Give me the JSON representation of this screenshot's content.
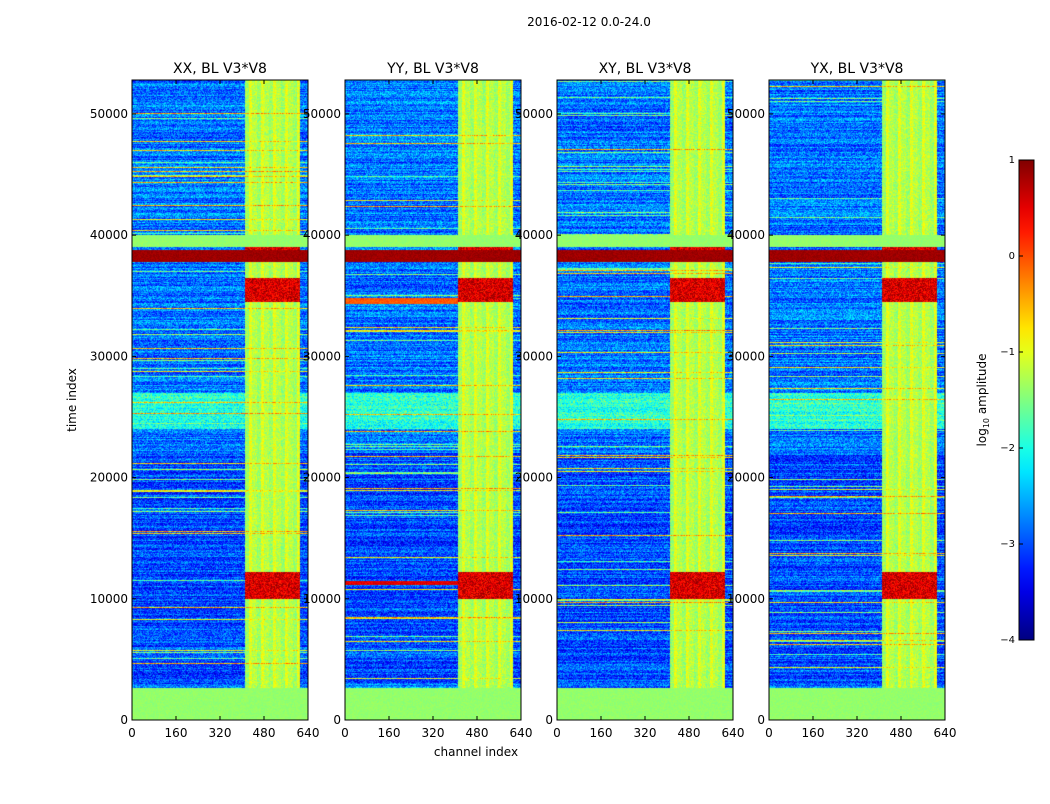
{
  "chart_data": {
    "type": "heatmap",
    "title": "2016-02-12 0.0-24.0",
    "xlabel": "channel index",
    "ylabel": "time index",
    "xlim": [
      0,
      640
    ],
    "ylim": [
      0,
      52800
    ],
    "x_ticks": [
      0,
      160,
      320,
      480,
      640
    ],
    "y_ticks": [
      0,
      10000,
      20000,
      30000,
      40000,
      50000
    ],
    "panels": [
      {
        "title": "XX, BL V3*V8",
        "pol": "XX"
      },
      {
        "title": "YY, BL V3*V8",
        "pol": "YY"
      },
      {
        "title": "XY, BL V3*V8",
        "pol": "XY"
      },
      {
        "title": "YX, BL V3*V8",
        "pol": "YX"
      }
    ],
    "colorbar": {
      "label": "log",
      "label_sub": "10",
      "label_rest": " amplitude",
      "range": [
        -4,
        1
      ],
      "ticks": [
        1,
        0,
        -1,
        -2,
        -3,
        -4
      ],
      "tick_labels": [
        "1",
        "0",
        "−1",
        "−2",
        "−3",
        "−4"
      ],
      "colormap": "jet"
    },
    "features": {
      "background_level": -2.8,
      "rfi_channel_band": [
        410,
        610
      ],
      "rfi_band_level": -0.9,
      "hot_time_ranges": [
        [
          37800,
          39000
        ],
        [
          10000,
          12200
        ],
        [
          34500,
          36500
        ]
      ],
      "flagged_time_ranges": [
        [
          0,
          2600
        ],
        [
          39000,
          40000
        ]
      ],
      "flagged_level": -1.4
    }
  }
}
